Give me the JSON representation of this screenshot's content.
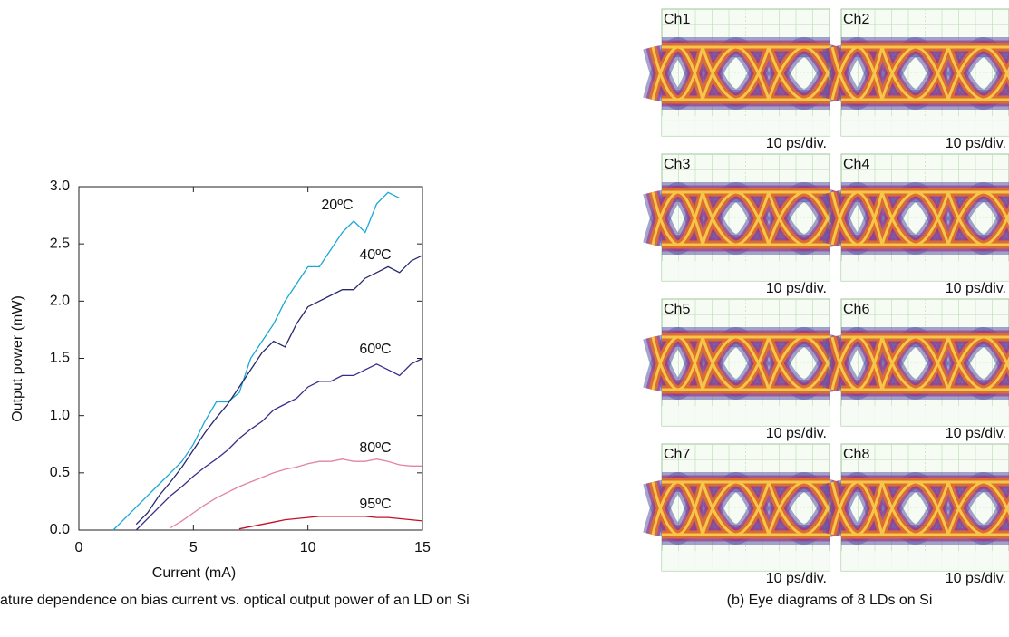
{
  "chart_data": {
    "type": "line",
    "xlabel": "Current (mA)",
    "ylabel": "Output power (mW)",
    "caption": "ature dependence on bias current vs. optical output power of an LD on Si",
    "x": [
      0,
      0.5,
      1,
      1.5,
      2,
      2.5,
      3,
      3.5,
      4,
      4.5,
      5,
      5.5,
      6,
      6.5,
      7,
      7.5,
      8,
      8.5,
      9,
      9.5,
      10,
      10.5,
      11,
      11.5,
      12,
      12.5,
      13,
      13.5,
      14,
      14.5,
      15
    ],
    "series": [
      {
        "name": "20ºC",
        "color": "#1aa8d6",
        "values": [
          null,
          null,
          null,
          0.0,
          0.1,
          0.2,
          0.3,
          0.4,
          0.5,
          0.6,
          0.75,
          0.95,
          1.12,
          1.12,
          1.2,
          1.5,
          1.65,
          1.8,
          2.0,
          2.15,
          2.3,
          2.3,
          2.45,
          2.6,
          2.7,
          2.6,
          2.85,
          2.95,
          2.9,
          null,
          null
        ]
      },
      {
        "name": "40ºC",
        "color": "#27286e",
        "values": [
          null,
          null,
          null,
          null,
          null,
          0.05,
          0.15,
          0.3,
          0.42,
          0.55,
          0.7,
          0.85,
          0.98,
          1.1,
          1.25,
          1.4,
          1.55,
          1.65,
          1.6,
          1.8,
          1.95,
          2.0,
          2.05,
          2.1,
          2.1,
          2.2,
          2.25,
          2.3,
          2.25,
          2.35,
          2.4
        ]
      },
      {
        "name": "60ºC",
        "color": "#3d2a8c",
        "values": [
          null,
          null,
          null,
          null,
          null,
          0.0,
          0.1,
          0.2,
          0.3,
          0.38,
          0.47,
          0.55,
          0.62,
          0.7,
          0.8,
          0.88,
          0.95,
          1.05,
          1.1,
          1.15,
          1.25,
          1.3,
          1.3,
          1.35,
          1.35,
          1.4,
          1.45,
          1.4,
          1.35,
          1.45,
          1.5
        ]
      },
      {
        "name": "80ºC",
        "color": "#e2849e",
        "values": [
          null,
          null,
          null,
          null,
          null,
          null,
          null,
          null,
          0.02,
          0.08,
          0.15,
          0.22,
          0.28,
          0.33,
          0.38,
          0.42,
          0.46,
          0.5,
          0.53,
          0.55,
          0.58,
          0.6,
          0.6,
          0.62,
          0.6,
          0.6,
          0.62,
          0.6,
          0.57,
          0.56,
          0.56
        ]
      },
      {
        "name": "95ºC",
        "color": "#c0102a",
        "values": [
          null,
          null,
          null,
          null,
          null,
          null,
          null,
          null,
          null,
          null,
          null,
          null,
          null,
          null,
          0.01,
          0.03,
          0.05,
          0.07,
          0.09,
          0.1,
          0.11,
          0.12,
          0.12,
          0.12,
          0.12,
          0.12,
          0.11,
          0.11,
          0.1,
          0.09,
          0.08
        ]
      }
    ],
    "xlim": [
      0,
      15
    ],
    "xticks": [
      0,
      5,
      10,
      15
    ],
    "ylim": [
      0,
      3
    ],
    "yticks": [
      {
        "value": 0,
        "label": "0.0"
      },
      0.5,
      {
        "value": 1,
        "label": "1.0"
      },
      1.5,
      {
        "value": 2,
        "label": "2.0"
      },
      2.5,
      {
        "value": 3,
        "label": "3.0"
      }
    ]
  },
  "eye_diagrams": {
    "caption": "(b) Eye diagrams of 8 LDs on Si",
    "panels": [
      {
        "label": "Ch1",
        "scale": "10 ps/div."
      },
      {
        "label": "Ch2",
        "scale": "10 ps/div."
      },
      {
        "label": "Ch3",
        "scale": "10 ps/div."
      },
      {
        "label": "Ch4",
        "scale": "10 ps/div."
      },
      {
        "label": "Ch5",
        "scale": "10 ps/div."
      },
      {
        "label": "Ch6",
        "scale": "10 ps/div."
      },
      {
        "label": "Ch7",
        "scale": "10 ps/div."
      },
      {
        "label": "Ch8",
        "scale": "10 ps/div."
      }
    ]
  }
}
